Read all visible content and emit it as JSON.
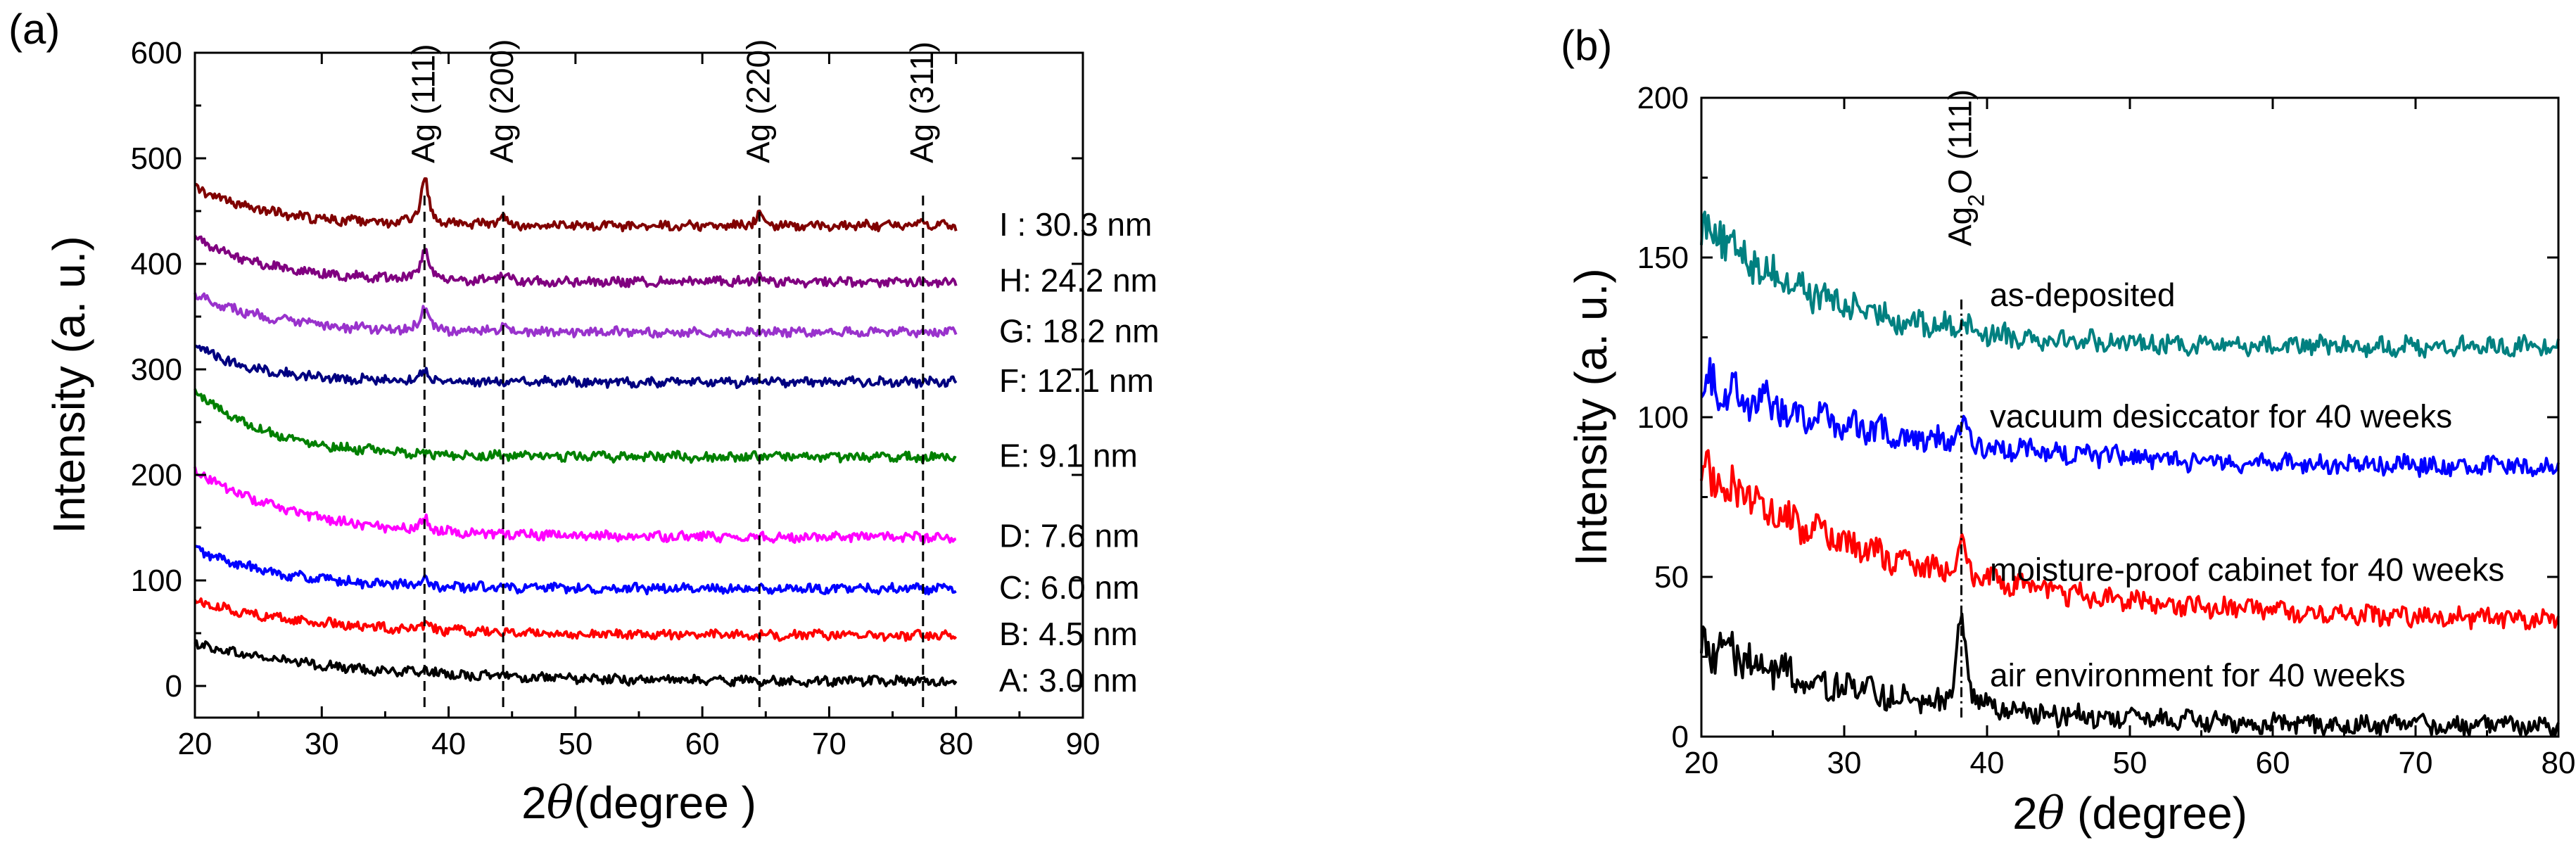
{
  "chart_data": [
    {
      "type": "line",
      "panel_label": "(a)",
      "xlabel_prefix": "2",
      "xlabel_theta": "θ",
      "xlabel_suffix": "(degree )",
      "ylabel": "Intensity (a. u.)",
      "xlim": [
        20,
        90
      ],
      "ylim": [
        -30,
        600
      ],
      "xticks": [
        20,
        30,
        40,
        50,
        60,
        70,
        80,
        90
      ],
      "yticks": [
        0,
        100,
        200,
        300,
        400,
        500,
        600
      ],
      "reference_lines": [
        {
          "x": 38.1,
          "label": "Ag (111)"
        },
        {
          "x": 44.3,
          "label": "Ag (200)"
        },
        {
          "x": 64.5,
          "label": "Ag (220)"
        },
        {
          "x": 77.4,
          "label": "Ag (311)"
        }
      ],
      "series": [
        {
          "name": "A: 3.0 nm",
          "color": "#000000",
          "start": 40,
          "base": 4,
          "decay": 12,
          "peaks": [
            [
              38.1,
              4
            ],
            [
              44.3,
              3
            ]
          ]
        },
        {
          "name": "B: 4.5 nm",
          "color": "#ff0000",
          "start": 80,
          "base": 48,
          "decay": 10,
          "peaks": [
            [
              38.1,
              5
            ]
          ]
        },
        {
          "name": "C: 6.0 nm",
          "color": "#0000ff",
          "start": 130,
          "base": 92,
          "decay": 7,
          "peaks": [
            [
              38.1,
              5
            ]
          ]
        },
        {
          "name": "D: 7.6 nm",
          "color": "#ff00ff",
          "start": 205,
          "base": 141,
          "decay": 8,
          "peaks": [
            [
              38.1,
              12
            ]
          ]
        },
        {
          "name": "E: 9.1 nm",
          "color": "#008000",
          "start": 280,
          "base": 217,
          "decay": 6,
          "peaks": []
        },
        {
          "name": "F: 12.1 nm",
          "color": "#000080",
          "start": 322,
          "base": 288,
          "decay": 5,
          "peaks": [
            [
              38.1,
              12
            ]
          ]
        },
        {
          "name": "G: 18.2 nm",
          "color": "#9932cc",
          "start": 372,
          "base": 335,
          "decay": 6,
          "peaks": [
            [
              38.1,
              22
            ],
            [
              44.3,
              6
            ]
          ]
        },
        {
          "name": "H: 24.2 nm",
          "color": "#800080",
          "start": 425,
          "base": 383,
          "decay": 6,
          "peaks": [
            [
              38.1,
              30
            ],
            [
              44.3,
              6
            ],
            [
              64.5,
              5
            ]
          ]
        },
        {
          "name": "I : 30.3 nm",
          "color": "#800000",
          "start": 472,
          "base": 436,
          "decay": 6,
          "peaks": [
            [
              38.1,
              45
            ],
            [
              44.3,
              8
            ],
            [
              64.5,
              12
            ],
            [
              77.4,
              6
            ]
          ]
        }
      ]
    },
    {
      "type": "line",
      "panel_label": "(b)",
      "xlabel_prefix": "2",
      "xlabel_theta": "θ",
      "xlabel_suffix": " (degree)",
      "ylabel": "Intensity (a. u.)",
      "xlim": [
        20,
        80
      ],
      "ylim": [
        0,
        200
      ],
      "xticks": [
        20,
        30,
        40,
        50,
        60,
        70,
        80
      ],
      "yticks": [
        0,
        50,
        100,
        150,
        200
      ],
      "reference_lines": [
        {
          "x": 38.2,
          "label_main": "Ag",
          "label_sub": "2",
          "label_rest": "O (111)"
        }
      ],
      "series": [
        {
          "name": "as-deposited",
          "color": "#008080",
          "start": 162,
          "base": 122,
          "decay": 9,
          "peaks": [
            [
              38.2,
              4
            ]
          ]
        },
        {
          "name": "vacuum desiccator for 40 weeks",
          "color": "#0000ff",
          "start": 112,
          "base": 84,
          "decay": 14,
          "peaks": [
            [
              38.2,
              6
            ]
          ]
        },
        {
          "name": "moisture-proof cabinet for 40 weeks",
          "color": "#ff0000",
          "start": 84,
          "base": 36,
          "decay": 15,
          "peaks": [
            [
              38.2,
              12
            ]
          ]
        },
        {
          "name": "air environment for 40 weeks",
          "color": "#000000",
          "start": 30,
          "base": 3,
          "decay": 13,
          "peaks": [
            [
              38.2,
              28
            ]
          ]
        }
      ]
    }
  ]
}
